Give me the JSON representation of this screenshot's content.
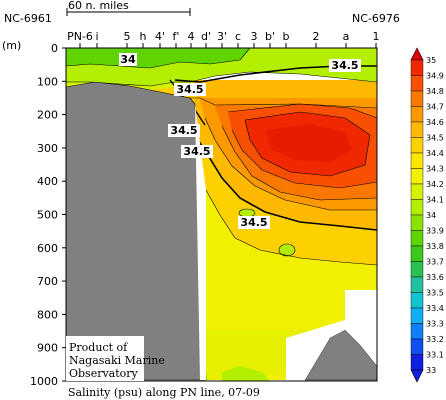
{
  "chart_data": {
    "type": "heatmap",
    "title": "Salinity (psu) along PN line, 07-09",
    "ylabel": "(m)",
    "ylim": [
      0,
      1000
    ],
    "y_ticks": [
      "0",
      "100",
      "200",
      "300",
      "400",
      "500",
      "600",
      "700",
      "800",
      "900",
      "1000"
    ],
    "station_labels": [
      "PN-6",
      "i",
      "5",
      "h",
      "4'",
      "f'",
      "4",
      "d'",
      "3'",
      "c",
      "3",
      "b'",
      "b",
      "2",
      "a",
      "1"
    ],
    "end_labels": {
      "left": "NC-6961",
      "right": "NC-6976"
    },
    "scale_bar": "60 n. miles",
    "contour_labels": [
      "34",
      "34.5",
      "34.5",
      "34.5",
      "34.5",
      "34.5"
    ],
    "legend": {
      "values": [
        "35",
        "34.9",
        "34.8",
        "34.7",
        "34.6",
        "34.5",
        "34.4",
        "34.3",
        "34.2",
        "34.1",
        "34",
        "33.9",
        "33.8",
        "33.7",
        "33.6",
        "33.5",
        "33.4",
        "33.3",
        "33.2",
        "33.1",
        "33"
      ],
      "colors": [
        "#e10000",
        "#f02800",
        "#f85000",
        "#fa7800",
        "#fc9800",
        "#fdb800",
        "#fdd000",
        "#fde600",
        "#f0f000",
        "#d6f000",
        "#b4ee00",
        "#8ce200",
        "#60d400",
        "#3cc818",
        "#28c050",
        "#20c0a0",
        "#10c4d0",
        "#10b0f0",
        "#1080f8",
        "#1050f0",
        "#1020e0"
      ]
    },
    "credit": [
      "Product of",
      "Nagasaki Marine",
      "Observatory"
    ]
  }
}
